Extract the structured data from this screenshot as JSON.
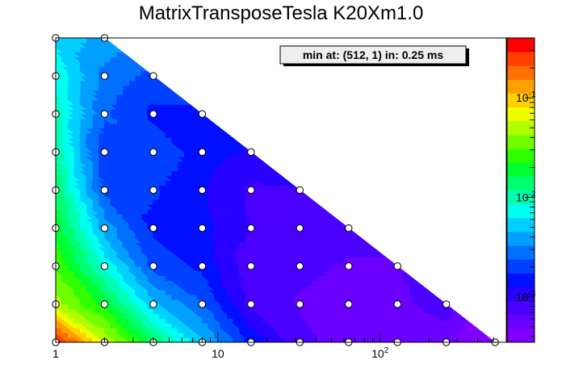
{
  "chart_data": {
    "type": "heatmap",
    "title": "MatrixTransposeTesla K20Xm1.0",
    "annotation": "min at: (512, 1) in: 0.25 ms",
    "x_scale": "log",
    "y_scale": "linear",
    "xlim": [
      1,
      600
    ],
    "x_tick_labels": [
      {
        "value": 1,
        "base": "1",
        "exp": ""
      },
      {
        "value": 10,
        "base": "10",
        "exp": ""
      },
      {
        "value": 100,
        "base": "10",
        "exp": "2"
      }
    ],
    "x_levels": [
      1,
      2,
      4,
      8,
      16,
      32,
      64,
      128,
      256,
      512
    ],
    "y_levels": [
      1,
      2,
      3,
      4,
      5,
      6,
      7,
      8,
      9
    ],
    "color_scale": "log",
    "zlim": [
      0.00035,
      0.4
    ],
    "colorbar_ticks": [
      {
        "value": 0.001,
        "base": "10",
        "exp": "-3"
      },
      {
        "value": 0.01,
        "base": "10",
        "exp": "-2"
      },
      {
        "value": 0.1,
        "base": "10",
        "exp": "-1"
      }
    ],
    "palette": [
      "#8000ff",
      "#6a00ff",
      "#4b00ff",
      "#2800ff",
      "#0010ff",
      "#0040ff",
      "#0070ff",
      "#00a0ff",
      "#00d0ff",
      "#00ffee",
      "#00ffb0",
      "#00ff70",
      "#00ff30",
      "#30ff00",
      "#70ff00",
      "#b0ff00",
      "#eeff00",
      "#ffd000",
      "#ffa000",
      "#ff7000",
      "#ff4000",
      "#ff0000"
    ],
    "grid": false,
    "legend": "top-right",
    "points": [
      [
        1,
        1,
        0.35
      ],
      [
        1,
        2,
        0.05
      ],
      [
        1,
        3,
        0.03
      ],
      [
        1,
        4,
        0.02
      ],
      [
        1,
        5,
        0.015
      ],
      [
        1,
        6,
        0.012
      ],
      [
        1,
        7,
        0.01
      ],
      [
        1,
        8,
        0.008
      ],
      [
        1,
        9,
        0.006
      ],
      [
        2,
        1,
        0.06
      ],
      [
        2,
        2,
        0.02
      ],
      [
        2,
        3,
        0.008
      ],
      [
        2,
        4,
        0.004
      ],
      [
        2,
        5,
        0.0022
      ],
      [
        2,
        6,
        0.0018
      ],
      [
        2,
        7,
        0.0025
      ],
      [
        2,
        8,
        0.003
      ],
      [
        2,
        9,
        0.004
      ],
      [
        4,
        1,
        0.015
      ],
      [
        4,
        2,
        0.005
      ],
      [
        4,
        3,
        0.0022
      ],
      [
        4,
        4,
        0.0016
      ],
      [
        4,
        5,
        0.0018
      ],
      [
        4,
        6,
        0.0022
      ],
      [
        4,
        7,
        0.0016
      ],
      [
        4,
        8,
        0.0022
      ],
      [
        8,
        1,
        0.005
      ],
      [
        8,
        2,
        0.0025
      ],
      [
        8,
        3,
        0.0016
      ],
      [
        8,
        4,
        0.0014
      ],
      [
        8,
        5,
        0.0013
      ],
      [
        8,
        6,
        0.0015
      ],
      [
        8,
        7,
        0.0016
      ],
      [
        16,
        1,
        0.0016
      ],
      [
        16,
        2,
        0.00085
      ],
      [
        16,
        3,
        0.00075
      ],
      [
        16,
        4,
        0.0009
      ],
      [
        16,
        5,
        0.00085
      ],
      [
        16,
        6,
        0.0012
      ],
      [
        32,
        1,
        0.00075
      ],
      [
        32,
        2,
        0.00065
      ],
      [
        32,
        3,
        0.0007
      ],
      [
        32,
        4,
        0.0008
      ],
      [
        32,
        5,
        0.0009
      ],
      [
        64,
        1,
        0.00055
      ],
      [
        64,
        2,
        0.0006
      ],
      [
        64,
        3,
        0.00065
      ],
      [
        64,
        4,
        0.0007
      ],
      [
        128,
        1,
        0.0005
      ],
      [
        128,
        2,
        0.0006
      ],
      [
        128,
        3,
        0.00065
      ],
      [
        256,
        1,
        0.00055
      ],
      [
        256,
        2,
        0.0008
      ],
      [
        512,
        1,
        0.00025
      ]
    ]
  }
}
